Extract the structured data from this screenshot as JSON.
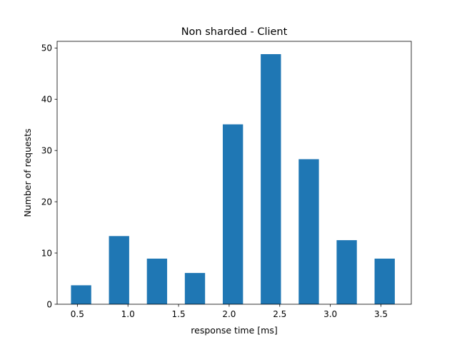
{
  "chart_data": {
    "type": "bar",
    "title": "Non sharded - Client",
    "xlabel": "response time [ms]",
    "ylabel": "Number of requests",
    "x": [
      0.537,
      0.912,
      1.287,
      1.662,
      2.037,
      2.412,
      2.787,
      3.162,
      3.537
    ],
    "values": [
      3.7,
      13.3,
      8.9,
      6.1,
      35.1,
      48.8,
      28.3,
      12.5,
      8.9
    ],
    "xlim": [
      0.3,
      3.8
    ],
    "ylim": [
      0,
      51.3
    ],
    "x_ticks": [
      0.5,
      1.0,
      1.5,
      2.0,
      2.5,
      3.0,
      3.5
    ],
    "x_tick_labels": [
      "0.5",
      "1.0",
      "1.5",
      "2.0",
      "2.5",
      "3.0",
      "3.5"
    ],
    "y_ticks": [
      0,
      10,
      20,
      30,
      40,
      50
    ],
    "y_tick_labels": [
      "0",
      "10",
      "20",
      "30",
      "40",
      "50"
    ],
    "bar_width": 0.2,
    "grid": false,
    "legend": "none",
    "bar_color": "#1f77b4"
  }
}
